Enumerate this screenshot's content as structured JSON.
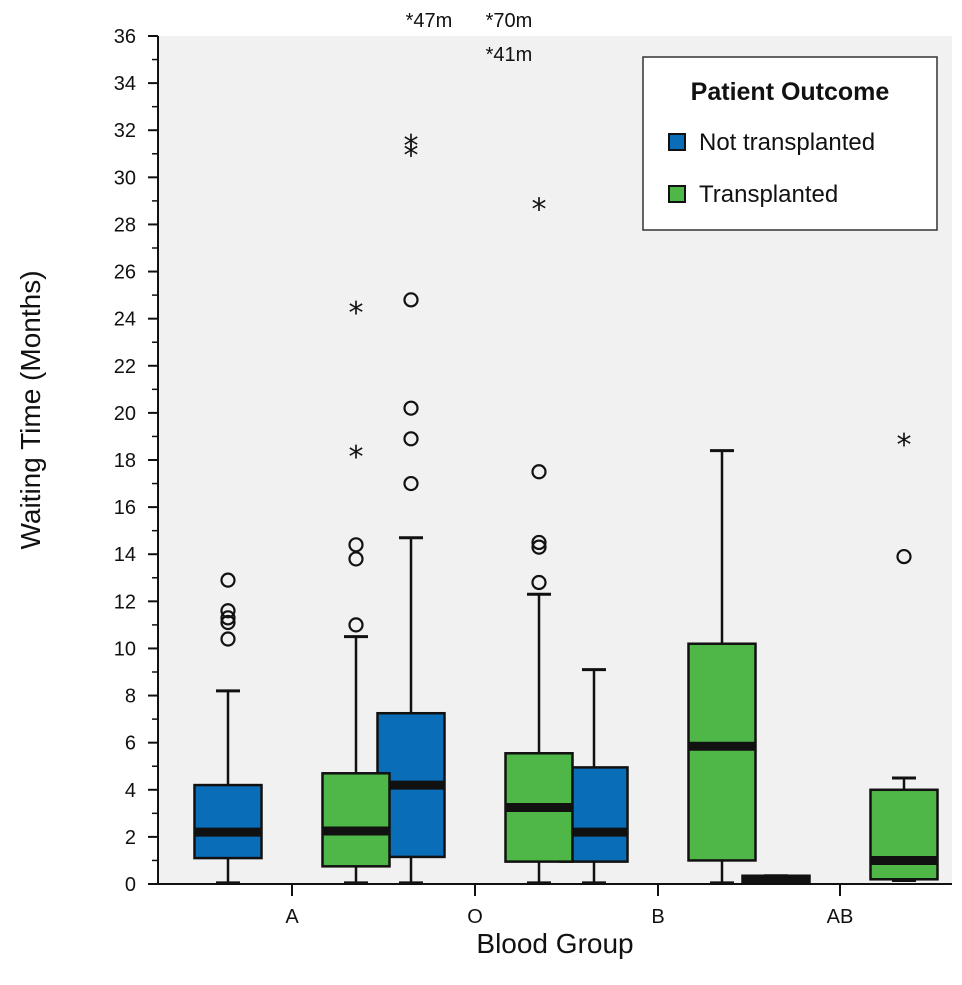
{
  "chart_data": {
    "type": "boxplot",
    "xlabel": "Blood Group",
    "ylabel": "Waiting Time (Months)",
    "ylim": [
      0,
      36
    ],
    "y_ticks": [
      0,
      2,
      4,
      6,
      8,
      10,
      12,
      14,
      16,
      18,
      20,
      22,
      24,
      26,
      28,
      30,
      32,
      34,
      36
    ],
    "categories": [
      "A",
      "O",
      "B",
      "AB"
    ],
    "legend": {
      "title": "Patient Outcome",
      "position": "top-right",
      "items": [
        {
          "label": "Not transplanted",
          "color": "#0a6db8"
        },
        {
          "label": "Transplanted",
          "color": "#4eb747"
        }
      ]
    },
    "grid": false,
    "background": "#f1f1f1",
    "series": [
      {
        "color": "#0a6db8",
        "boxes": [
          {
            "category": "A",
            "min": 0.05,
            "q1": 1.1,
            "median": 2.2,
            "q3": 4.2,
            "max": 8.2,
            "outliers": [
              10.4,
              11.1,
              11.3,
              11.6,
              12.9
            ],
            "extremes": []
          },
          {
            "category": "O",
            "min": 0.05,
            "q1": 1.15,
            "median": 4.2,
            "q3": 7.25,
            "max": 14.7,
            "outliers": [
              17.0,
              18.9,
              20.2,
              24.8
            ],
            "extremes": [
              31.1,
              31.5
            ]
          },
          {
            "category": "B",
            "min": 0.05,
            "q1": 0.95,
            "median": 2.2,
            "q3": 4.95,
            "max": 9.1,
            "outliers": [],
            "extremes": []
          },
          {
            "category": "AB",
            "min": 0.05,
            "q1": 0.05,
            "median": 0.2,
            "q3": 0.35,
            "max": 0.35,
            "outliers": [],
            "extremes": []
          }
        ]
      },
      {
        "color": "#4eb747",
        "boxes": [
          {
            "category": "A",
            "min": 0.05,
            "q1": 0.75,
            "median": 2.25,
            "q3": 4.7,
            "max": 10.5,
            "outliers": [
              11.0,
              13.8,
              14.4
            ],
            "extremes": [
              18.3,
              24.4
            ]
          },
          {
            "category": "O",
            "min": 0.05,
            "q1": 0.95,
            "median": 3.25,
            "q3": 5.55,
            "max": 12.3,
            "outliers": [
              12.8,
              14.3,
              14.5,
              17.5
            ],
            "extremes": [
              28.8
            ]
          },
          {
            "category": "B",
            "min": 0.05,
            "q1": 1.0,
            "median": 5.85,
            "q3": 10.2,
            "max": 18.4,
            "outliers": [],
            "extremes": []
          },
          {
            "category": "AB",
            "min": 0.15,
            "q1": 0.2,
            "median": 1.0,
            "q3": 4.0,
            "max": 4.5,
            "outliers": [
              13.9
            ],
            "extremes": [
              18.8
            ]
          }
        ]
      }
    ],
    "offscale_annotations": [
      {
        "text": "*47m",
        "category": "O",
        "series": 0,
        "row": 0
      },
      {
        "text": "*70m",
        "category": "O",
        "series": 1,
        "row": 0
      },
      {
        "text": "*41m",
        "category": "O",
        "series": 1,
        "row": 1
      }
    ]
  }
}
